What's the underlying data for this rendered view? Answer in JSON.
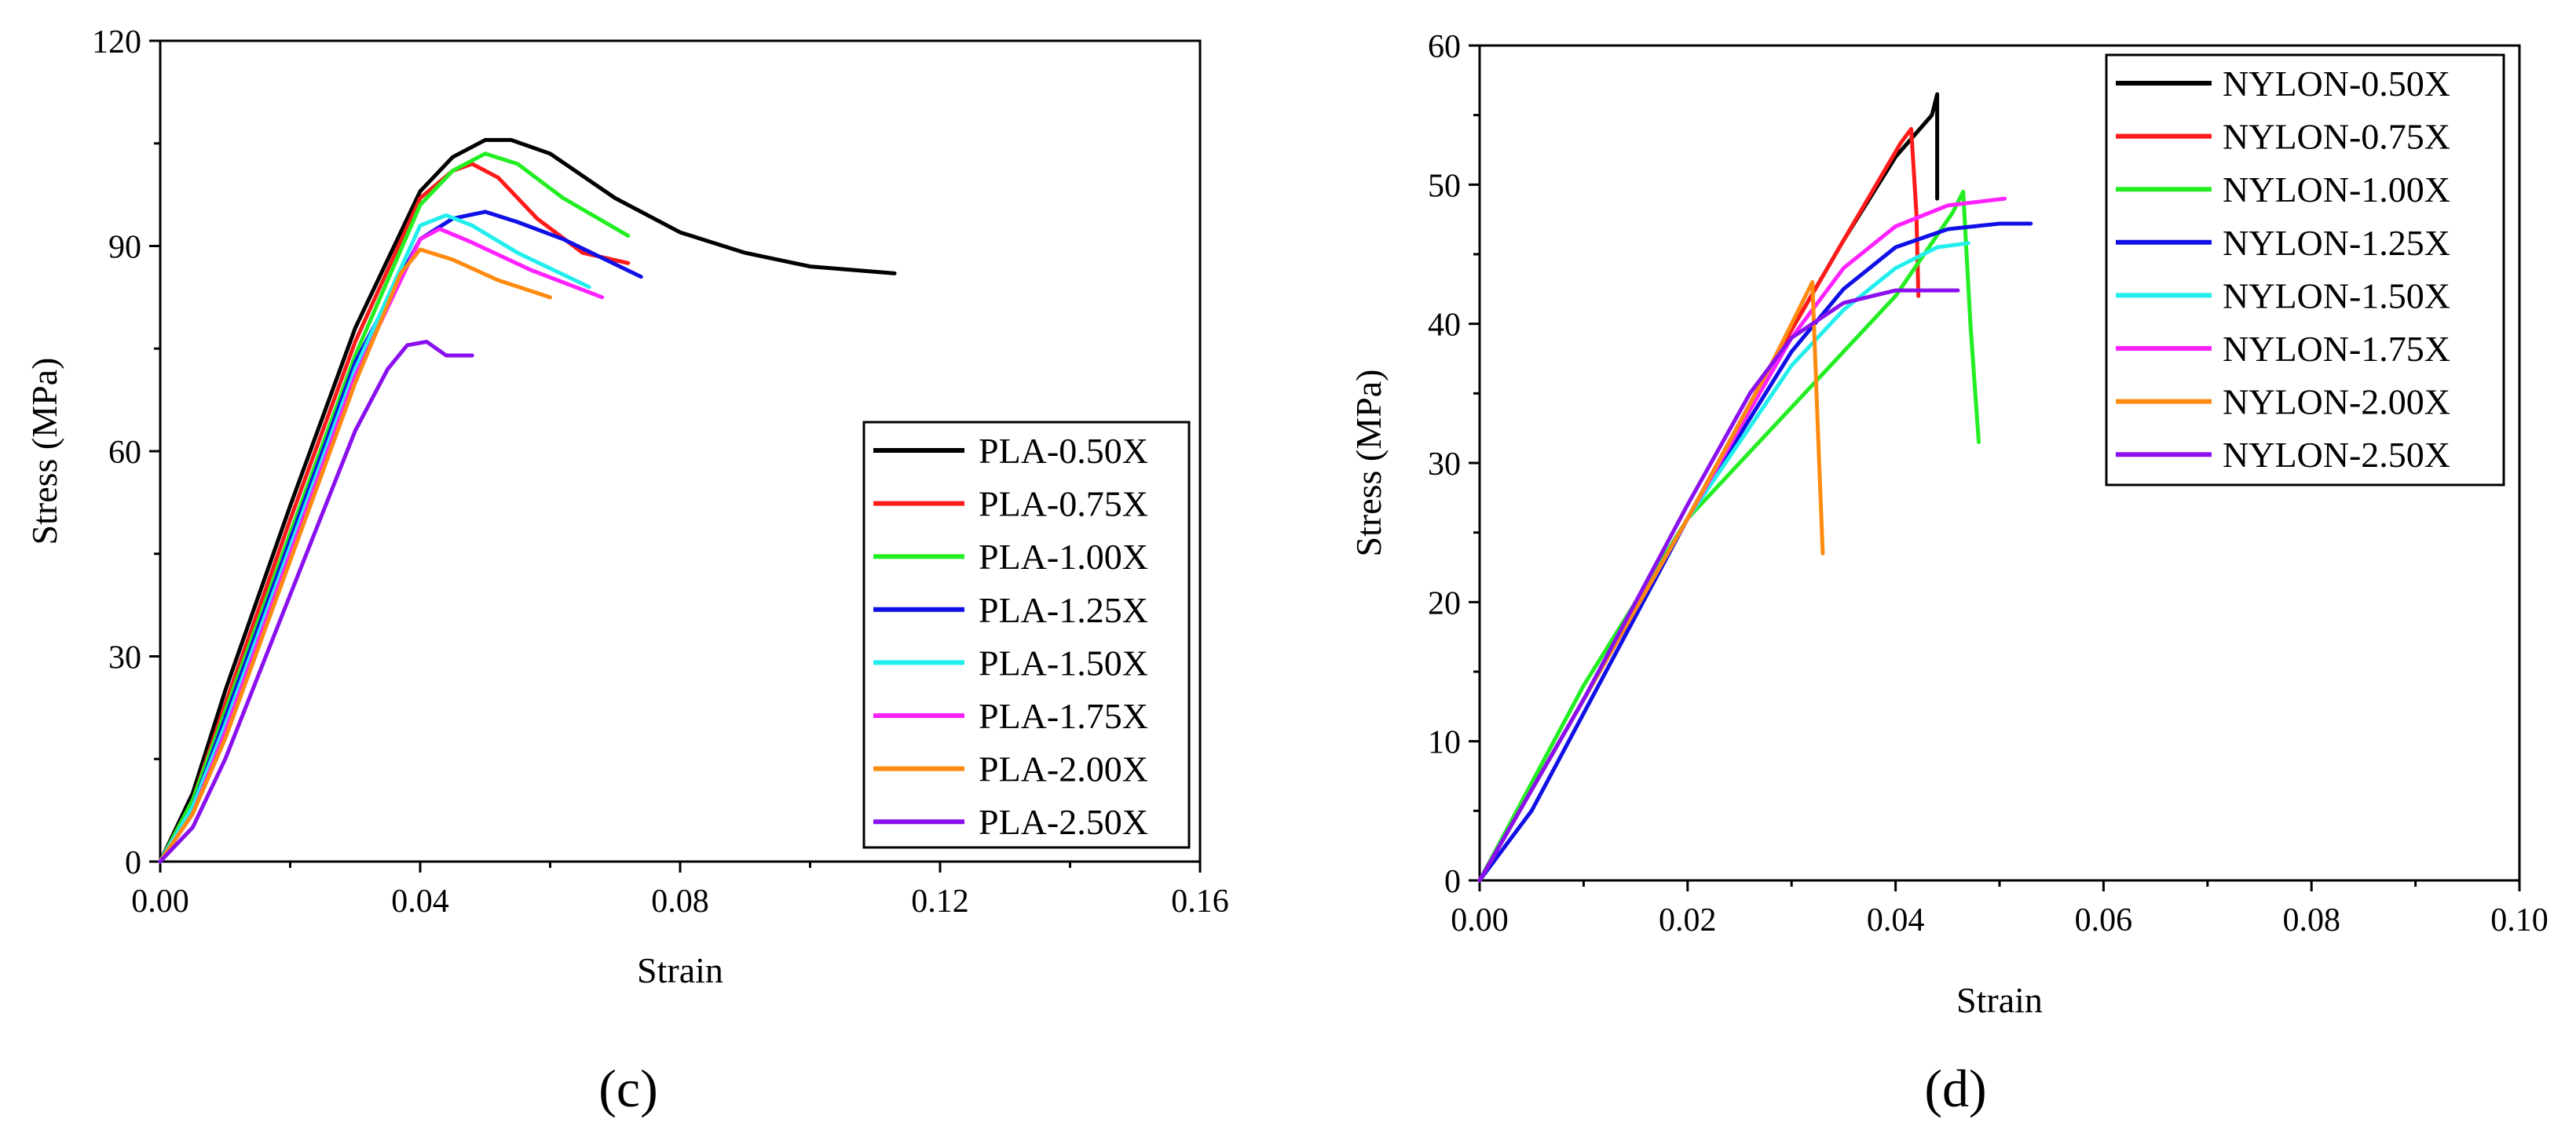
{
  "colors": {
    "black": "#000000",
    "red": "#ff1a1a",
    "green": "#22ee22",
    "blue": "#1010e6",
    "cyan": "#22eeee",
    "magenta": "#ff22ff",
    "orange": "#ff8a10",
    "purple": "#8a10ee"
  },
  "chart_data": [
    {
      "type": "line",
      "panel_label": "(c)",
      "xlabel": "Strain",
      "ylabel": "Stress (MPa)",
      "xlim": [
        0,
        0.16
      ],
      "ylim": [
        0,
        120
      ],
      "xticks": [
        0,
        0.04,
        0.08,
        0.12,
        0.16
      ],
      "xtick_labels": [
        "0.00",
        "0.04",
        "0.08",
        "0.12",
        "0.16"
      ],
      "yticks": [
        0,
        30,
        60,
        90,
        120
      ],
      "ytick_labels": [
        "0",
        "30",
        "60",
        "90",
        "120"
      ],
      "legend_position": "lower-right",
      "series": [
        {
          "name": "PLA-0.50X",
          "color": "#000000",
          "x": [
            0,
            0.005,
            0.01,
            0.02,
            0.03,
            0.04,
            0.045,
            0.05,
            0.054,
            0.06,
            0.07,
            0.08,
            0.09,
            0.1,
            0.113
          ],
          "y": [
            0,
            10,
            25,
            52,
            78,
            98,
            103,
            105.5,
            105.5,
            103.5,
            97,
            92,
            89,
            87,
            86
          ]
        },
        {
          "name": "PLA-0.75X",
          "color": "#ff1a1a",
          "x": [
            0,
            0.005,
            0.01,
            0.02,
            0.03,
            0.04,
            0.045,
            0.048,
            0.052,
            0.058,
            0.065,
            0.072
          ],
          "y": [
            0,
            9,
            23,
            50,
            76,
            97,
            101,
            102,
            100,
            94,
            89,
            87.5
          ]
        },
        {
          "name": "PLA-1.00X",
          "color": "#22ee22",
          "x": [
            0,
            0.005,
            0.01,
            0.02,
            0.03,
            0.04,
            0.045,
            0.05,
            0.055,
            0.062,
            0.072
          ],
          "y": [
            0,
            9,
            22,
            48,
            74,
            96,
            101,
            103.5,
            102,
            97,
            91.5
          ]
        },
        {
          "name": "PLA-1.25X",
          "color": "#1010e6",
          "x": [
            0,
            0.005,
            0.01,
            0.02,
            0.03,
            0.04,
            0.045,
            0.05,
            0.055,
            0.062,
            0.074
          ],
          "y": [
            0,
            8,
            21,
            47,
            73,
            91,
            94,
            95,
            93.5,
            91,
            85.5
          ]
        },
        {
          "name": "PLA-1.50X",
          "color": "#22eeee",
          "x": [
            0,
            0.005,
            0.01,
            0.02,
            0.03,
            0.04,
            0.044,
            0.048,
            0.055,
            0.066
          ],
          "y": [
            0,
            8,
            20,
            46,
            72,
            93,
            94.5,
            93,
            89,
            84
          ]
        },
        {
          "name": "PLA-1.75X",
          "color": "#ff22ff",
          "x": [
            0,
            0.005,
            0.01,
            0.02,
            0.03,
            0.04,
            0.043,
            0.048,
            0.057,
            0.068
          ],
          "y": [
            0,
            7,
            19,
            45,
            71,
            91,
            92.5,
            90.5,
            86.5,
            82.5
          ]
        },
        {
          "name": "PLA-2.00X",
          "color": "#ff8a10",
          "x": [
            0,
            0.005,
            0.01,
            0.02,
            0.03,
            0.037,
            0.04,
            0.045,
            0.052,
            0.06
          ],
          "y": [
            0,
            7,
            18,
            44,
            70,
            86,
            89.5,
            88,
            85,
            82.5
          ]
        },
        {
          "name": "PLA-2.50X",
          "color": "#8a10ee",
          "x": [
            0,
            0.005,
            0.01,
            0.02,
            0.03,
            0.035,
            0.038,
            0.041,
            0.044,
            0.048
          ],
          "y": [
            0,
            5,
            15,
            39,
            63,
            72,
            75.5,
            76,
            74,
            74
          ]
        }
      ]
    },
    {
      "type": "line",
      "panel_label": "(d)",
      "xlabel": "Strain",
      "ylabel": "Stress (MPa)",
      "xlim": [
        0,
        0.1
      ],
      "ylim": [
        0,
        60
      ],
      "xticks": [
        0,
        0.02,
        0.04,
        0.06,
        0.08,
        0.1
      ],
      "xtick_labels": [
        "0.00",
        "0.02",
        "0.04",
        "0.06",
        "0.08",
        "0.10"
      ],
      "yticks": [
        0,
        10,
        20,
        30,
        40,
        50,
        60
      ],
      "ytick_labels": [
        "0",
        "10",
        "20",
        "30",
        "40",
        "50",
        "60"
      ],
      "legend_position": "top-right",
      "series": [
        {
          "name": "NYLON-0.50X",
          "color": "#000000",
          "x": [
            0,
            0.01,
            0.02,
            0.028,
            0.035,
            0.04,
            0.0435,
            0.044,
            0.044
          ],
          "y": [
            0,
            13,
            26,
            37,
            46,
            52,
            55,
            56.5,
            49
          ]
        },
        {
          "name": "NYLON-0.75X",
          "color": "#ff1a1a",
          "x": [
            0,
            0.01,
            0.02,
            0.028,
            0.035,
            0.0405,
            0.0415,
            0.042,
            0.0422
          ],
          "y": [
            0,
            13,
            26,
            37,
            46,
            53,
            54,
            48,
            42
          ]
        },
        {
          "name": "NYLON-1.00X",
          "color": "#22ee22",
          "x": [
            0,
            0.01,
            0.02,
            0.03,
            0.04,
            0.0455,
            0.0465,
            0.0472,
            0.048
          ],
          "y": [
            0,
            14,
            26,
            34,
            42,
            48,
            49.5,
            40,
            31.5
          ]
        },
        {
          "name": "NYLON-1.25X",
          "color": "#1010e6",
          "x": [
            0,
            0.005,
            0.01,
            0.02,
            0.03,
            0.035,
            0.04,
            0.045,
            0.05,
            0.053
          ],
          "y": [
            0,
            5,
            12,
            26,
            38,
            42.5,
            45.5,
            46.8,
            47.2,
            47.2
          ]
        },
        {
          "name": "NYLON-1.50X",
          "color": "#22eeee",
          "x": [
            0,
            0.01,
            0.02,
            0.03,
            0.035,
            0.04,
            0.044,
            0.047
          ],
          "y": [
            0,
            13,
            26,
            37,
            41,
            44,
            45.5,
            45.8
          ]
        },
        {
          "name": "NYLON-1.75X",
          "color": "#ff22ff",
          "x": [
            0,
            0.01,
            0.02,
            0.03,
            0.035,
            0.04,
            0.045,
            0.0505
          ],
          "y": [
            0,
            13,
            26,
            39,
            44,
            47,
            48.5,
            49
          ]
        },
        {
          "name": "NYLON-2.00X",
          "color": "#ff8a10",
          "x": [
            0,
            0.01,
            0.02,
            0.028,
            0.032,
            0.0325,
            0.033
          ],
          "y": [
            0,
            13,
            26,
            37,
            43,
            33,
            23.5
          ]
        },
        {
          "name": "NYLON-2.50X",
          "color": "#8a10ee",
          "x": [
            0,
            0.01,
            0.02,
            0.026,
            0.03,
            0.035,
            0.04,
            0.046
          ],
          "y": [
            0,
            13,
            27,
            35,
            39,
            41.5,
            42.4,
            42.4
          ]
        }
      ]
    }
  ]
}
